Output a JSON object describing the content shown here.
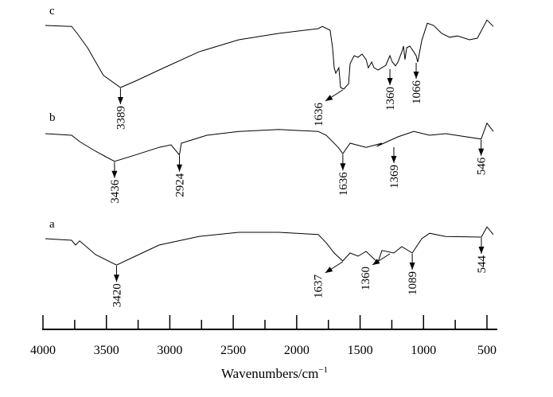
{
  "chart_data": {
    "type": "line",
    "title": "",
    "xlabel": "Wavenumbers/cm",
    "xlabel_superscript": "−1",
    "ylabel": "",
    "xlim": [
      4000,
      450
    ],
    "ylim": [
      0,
      100
    ],
    "x_ticks_major": [
      4000,
      3500,
      3000,
      2500,
      2000,
      1500,
      1000,
      500
    ],
    "x_ticks_minor": [
      3750,
      3250,
      2750,
      2250,
      1750,
      1250,
      750
    ],
    "x_tick_labels": [
      "4000",
      "3500",
      "3000",
      "2500",
      "2000",
      "1500",
      "1000",
      "500"
    ],
    "grid": false,
    "series": [
      {
        "name": "c",
        "x": [
          3981,
          3774,
          3730,
          3649,
          3523,
          3389,
          3272,
          3084,
          2771,
          2457,
          2143,
          1830,
          1798,
          1736,
          1717,
          1704,
          1692,
          1667,
          1654,
          1629,
          1591,
          1579,
          1547,
          1516,
          1485,
          1453,
          1435,
          1409,
          1390,
          1359,
          1297,
          1265,
          1246,
          1221,
          1202,
          1171,
          1158,
          1146,
          1133,
          1108,
          1077,
          1058,
          1046,
          1014,
          970,
          920,
          857,
          795,
          732,
          638,
          575,
          500,
          450
        ],
        "y": [
          95.5,
          95.2,
          93,
          88.5,
          79.8,
          76,
          78,
          81.5,
          87.2,
          91,
          93,
          94.5,
          95.2,
          94,
          88.5,
          82.2,
          80.5,
          82.2,
          76,
          75.5,
          77.2,
          83.5,
          86,
          85.5,
          86.5,
          84.8,
          82.2,
          84,
          82.2,
          81.5,
          83,
          86,
          84,
          82.8,
          84,
          87.2,
          89,
          84.8,
          88.5,
          89,
          87.2,
          86,
          84,
          90.8,
          96.2,
          95.5,
          93,
          91.8,
          92.2,
          91,
          91.5,
          97.2,
          95.2
        ]
      },
      {
        "name": "b",
        "x": [
          3981,
          3774,
          3711,
          3586,
          3436,
          3272,
          3084,
          2990,
          2924,
          2909,
          2708,
          2457,
          2143,
          1830,
          1767,
          1673,
          1636,
          1579,
          1453,
          1328,
          1369,
          1202,
          1077,
          952,
          826,
          546,
          500,
          450
        ],
        "y": [
          61.5,
          61,
          59,
          56,
          52.8,
          54.8,
          57.2,
          58,
          54.8,
          58.5,
          61,
          62.2,
          62.8,
          62.2,
          61,
          57.2,
          55.2,
          58.5,
          57.2,
          58.5,
          57.5,
          60.5,
          62.2,
          61,
          61.5,
          59.8,
          64.8,
          62.2
        ]
      },
      {
        "name": "a",
        "x": [
          3981,
          3774,
          3743,
          3711,
          3586,
          3420,
          3272,
          3084,
          2771,
          2457,
          2143,
          1830,
          1767,
          1704,
          1637,
          1579,
          1516,
          1453,
          1360,
          1328,
          1234,
          1171,
          1089,
          1014,
          952,
          826,
          544,
          500,
          450
        ],
        "y": [
          28.5,
          28,
          26.5,
          27.8,
          23.5,
          20.2,
          23,
          26.5,
          29.2,
          30.5,
          30.5,
          29.8,
          27.2,
          24,
          21.5,
          24,
          23,
          24.5,
          21,
          24.8,
          24,
          26,
          24,
          28.5,
          30.2,
          29.2,
          29,
          32.2,
          29.8
        ]
      }
    ],
    "annotations": [
      {
        "series": "c",
        "label": "3389",
        "x": 3389,
        "y": 76
      },
      {
        "series": "c",
        "label": "1636",
        "x": 1636,
        "y": 75.5,
        "diagonal": true
      },
      {
        "series": "c",
        "label": "1360",
        "x": 1265,
        "y": 82
      },
      {
        "series": "c",
        "label": "1066",
        "x": 1058,
        "y": 84
      },
      {
        "series": "b",
        "label": "3436",
        "x": 3436,
        "y": 52.8
      },
      {
        "series": "b",
        "label": "2924",
        "x": 2924,
        "y": 54.8
      },
      {
        "series": "b",
        "label": "1636",
        "x": 1636,
        "y": 55.2
      },
      {
        "series": "b",
        "label": "1369",
        "x": 1234,
        "y": 57.5
      },
      {
        "series": "b",
        "label": "546",
        "x": 546,
        "y": 59.8
      },
      {
        "series": "a",
        "label": "3420",
        "x": 3420,
        "y": 20.2
      },
      {
        "series": "a",
        "label": "1637",
        "x": 1637,
        "y": 21.5,
        "diagonal": true
      },
      {
        "series": "a",
        "label": "1360",
        "x": 1265,
        "y": 24,
        "diagonal": true
      },
      {
        "series": "a",
        "label": "1089",
        "x": 1089,
        "y": 24
      },
      {
        "series": "a",
        "label": "544",
        "x": 544,
        "y": 29
      }
    ],
    "series_labels": [
      {
        "label": "c",
        "y": 99
      },
      {
        "label": "b",
        "y": 65.5
      },
      {
        "label": "a",
        "y": 32
      }
    ]
  }
}
